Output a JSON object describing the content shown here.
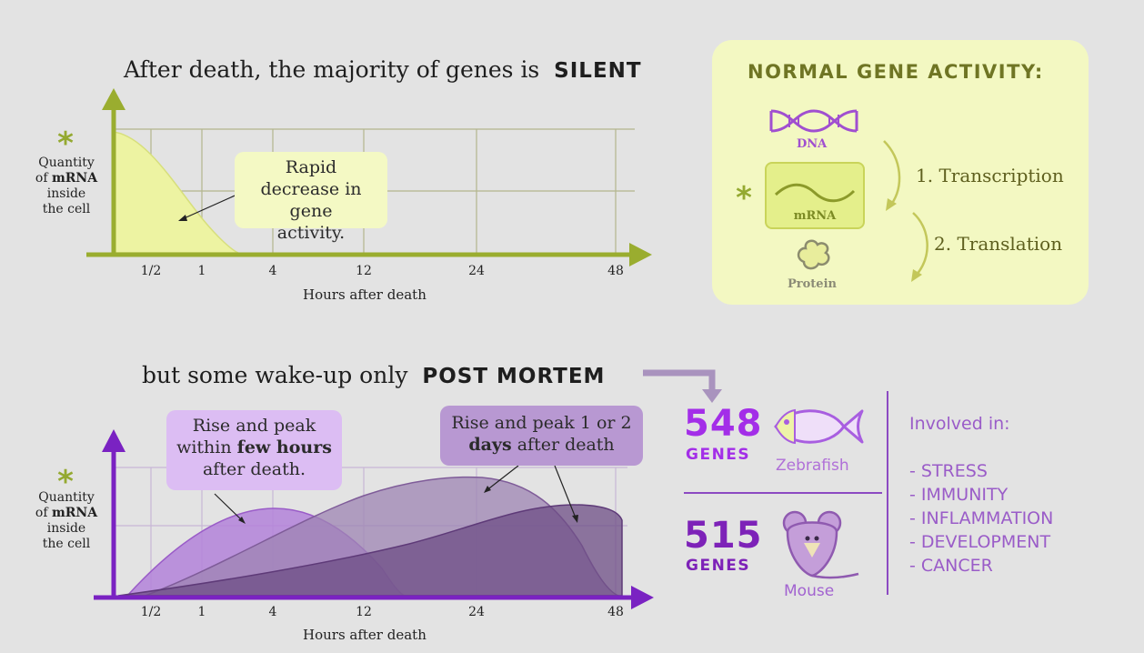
{
  "top": {
    "title_prefix": "After death, the majority of genes is",
    "title_emph": "SILENT",
    "star": "*",
    "ylabel_line1": "Quantity",
    "ylabel_line2_prefix": "of",
    "ylabel_line2_bold": "mRNA",
    "ylabel_line3": "inside",
    "ylabel_line4": "the cell",
    "xlabel": "Hours after death",
    "callout": "Rapid decrease in gene activity."
  },
  "bottom": {
    "title_prefix": "but some wake-up only",
    "title_emph": "POST MORTEM",
    "star": "*",
    "ylabel_line1": "Quantity",
    "ylabel_line2_prefix": "of",
    "ylabel_line2_bold": "mRNA",
    "ylabel_line3": "inside",
    "ylabel_line4": "the cell",
    "xlabel": "Hours after death",
    "callout_left_1": "Rise and peak within",
    "callout_left_bold": "few hours",
    "callout_left_2": "after death.",
    "callout_right_1": "Rise and peak 1 or 2",
    "callout_right_bold": "days",
    "callout_right_2": "after death"
  },
  "panel": {
    "title": "NORMAL GENE ACTIVITY:",
    "dna_label": "DNA",
    "mrna_label": "mRNA",
    "protein_label": "Protein",
    "star": "*",
    "step1": "1. Transcription",
    "step2": "2. Translation"
  },
  "stats": {
    "zebrafish": {
      "count": "548",
      "genes": "GENES",
      "animal": "Zebrafish"
    },
    "mouse": {
      "count": "515",
      "genes": "GENES",
      "animal": "Mouse"
    },
    "involved_title": "Involved in:",
    "involved_items": [
      "- STRESS",
      "- IMMUNITY",
      "- INFLAMMATION",
      "- DEVELOPMENT",
      "- CANCER"
    ]
  },
  "chart_data": [
    {
      "type": "area",
      "title": "After death, the majority of genes is SILENT",
      "xlabel": "Hours after death",
      "ylabel": "Quantity of mRNA inside the cell",
      "x_ticks": [
        "1/2",
        "1",
        "4",
        "12",
        "24",
        "48"
      ],
      "series": [
        {
          "name": "silent genes",
          "color": "#edf2a6",
          "x": [
            "0",
            "1/2",
            "1",
            "4"
          ],
          "values": [
            1.0,
            0.6,
            0.2,
            0.0
          ]
        }
      ]
    },
    {
      "type": "area",
      "title": "but some wake-up only POST MORTEM",
      "xlabel": "Hours after death",
      "ylabel": "Quantity of mRNA inside the cell",
      "x_ticks": [
        "1/2",
        "1",
        "4",
        "12",
        "24",
        "48"
      ],
      "series": [
        {
          "name": "peak within few hours",
          "color": "#b383d9",
          "peak_at": "4"
        },
        {
          "name": "peak 1 day",
          "color": "#9e84b3",
          "peak_at": "24"
        },
        {
          "name": "peak 2 days",
          "color": "#7a5b8f",
          "peak_at": "48"
        }
      ]
    }
  ],
  "colors": {
    "green": "#9aad2f",
    "purple": "#7a22c2",
    "bg": "#e3e3e3",
    "panel_bg": "#f3f8c2"
  }
}
